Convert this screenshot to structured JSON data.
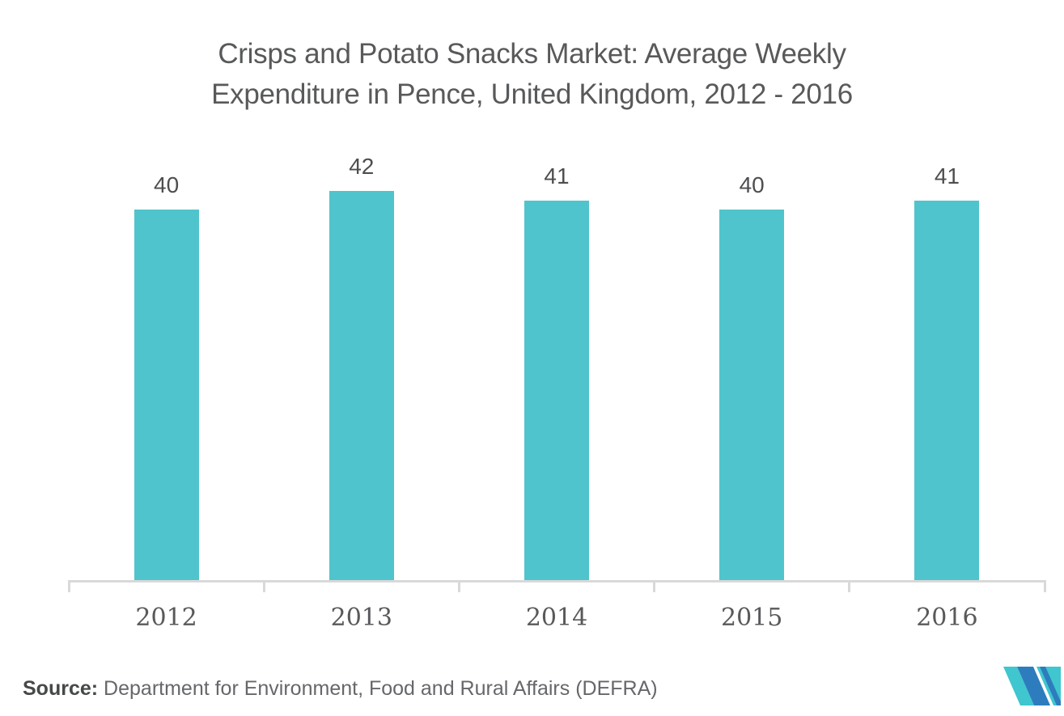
{
  "chart_data": {
    "type": "bar",
    "title": "Crisps and Potato Snacks Market: Average Weekly Expenditure in Pence, United Kingdom, 2012 - 2016",
    "title_lines": [
      "Crisps and Potato Snacks Market: Average Weekly",
      "Expenditure in Pence, United Kingdom, 2012 - 2016"
    ],
    "categories": [
      "2012",
      "2013",
      "2014",
      "2015",
      "2016"
    ],
    "values": [
      40,
      42,
      41,
      40,
      41
    ],
    "xlabel": "",
    "ylabel": "",
    "ylim": [
      0,
      42
    ],
    "grid": false,
    "legend": false,
    "data_labels_shown": true,
    "y_axis_shown": false
  },
  "footer": {
    "source_prefix": "Source:",
    "source_text": "Department for Environment, Food and Rural Affairs (DEFRA)"
  },
  "logo": {
    "name": "mordor-intelligence-logo",
    "teal": "#3FC6CE",
    "blue": "#2D7DBE"
  },
  "colors": {
    "background": "#FFFFFF",
    "bar_fill": "#50C4CC",
    "title_text": "#58595B",
    "data_label_text": "#4D4E50",
    "tick_label_text": "#58595B",
    "axis_line": "#D9D9D9",
    "source_prefix_text": "#474849",
    "source_text": "#66676A"
  }
}
